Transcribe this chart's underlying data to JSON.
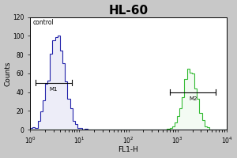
{
  "title": "HL-60",
  "xlabel": "FL1-H",
  "ylabel": "Counts",
  "annotation_control": "control",
  "annotation_m1": "M1",
  "annotation_m2": "M2",
  "ylim": [
    0,
    120
  ],
  "yticks": [
    0,
    20,
    40,
    60,
    80,
    100,
    120
  ],
  "outer_bg_color": "#c8c8c8",
  "plot_bg_color": "#ffffff",
  "blue_color": "#2222aa",
  "green_color": "#33bb33",
  "title_fontsize": 11,
  "label_fontsize": 6.5,
  "tick_fontsize": 5.5,
  "blue_peak_mean": 3.5,
  "blue_peak_sigma": 0.38,
  "blue_n": 2500,
  "green_peak_mean": 1800,
  "green_peak_sigma": 0.32,
  "green_n": 2000
}
